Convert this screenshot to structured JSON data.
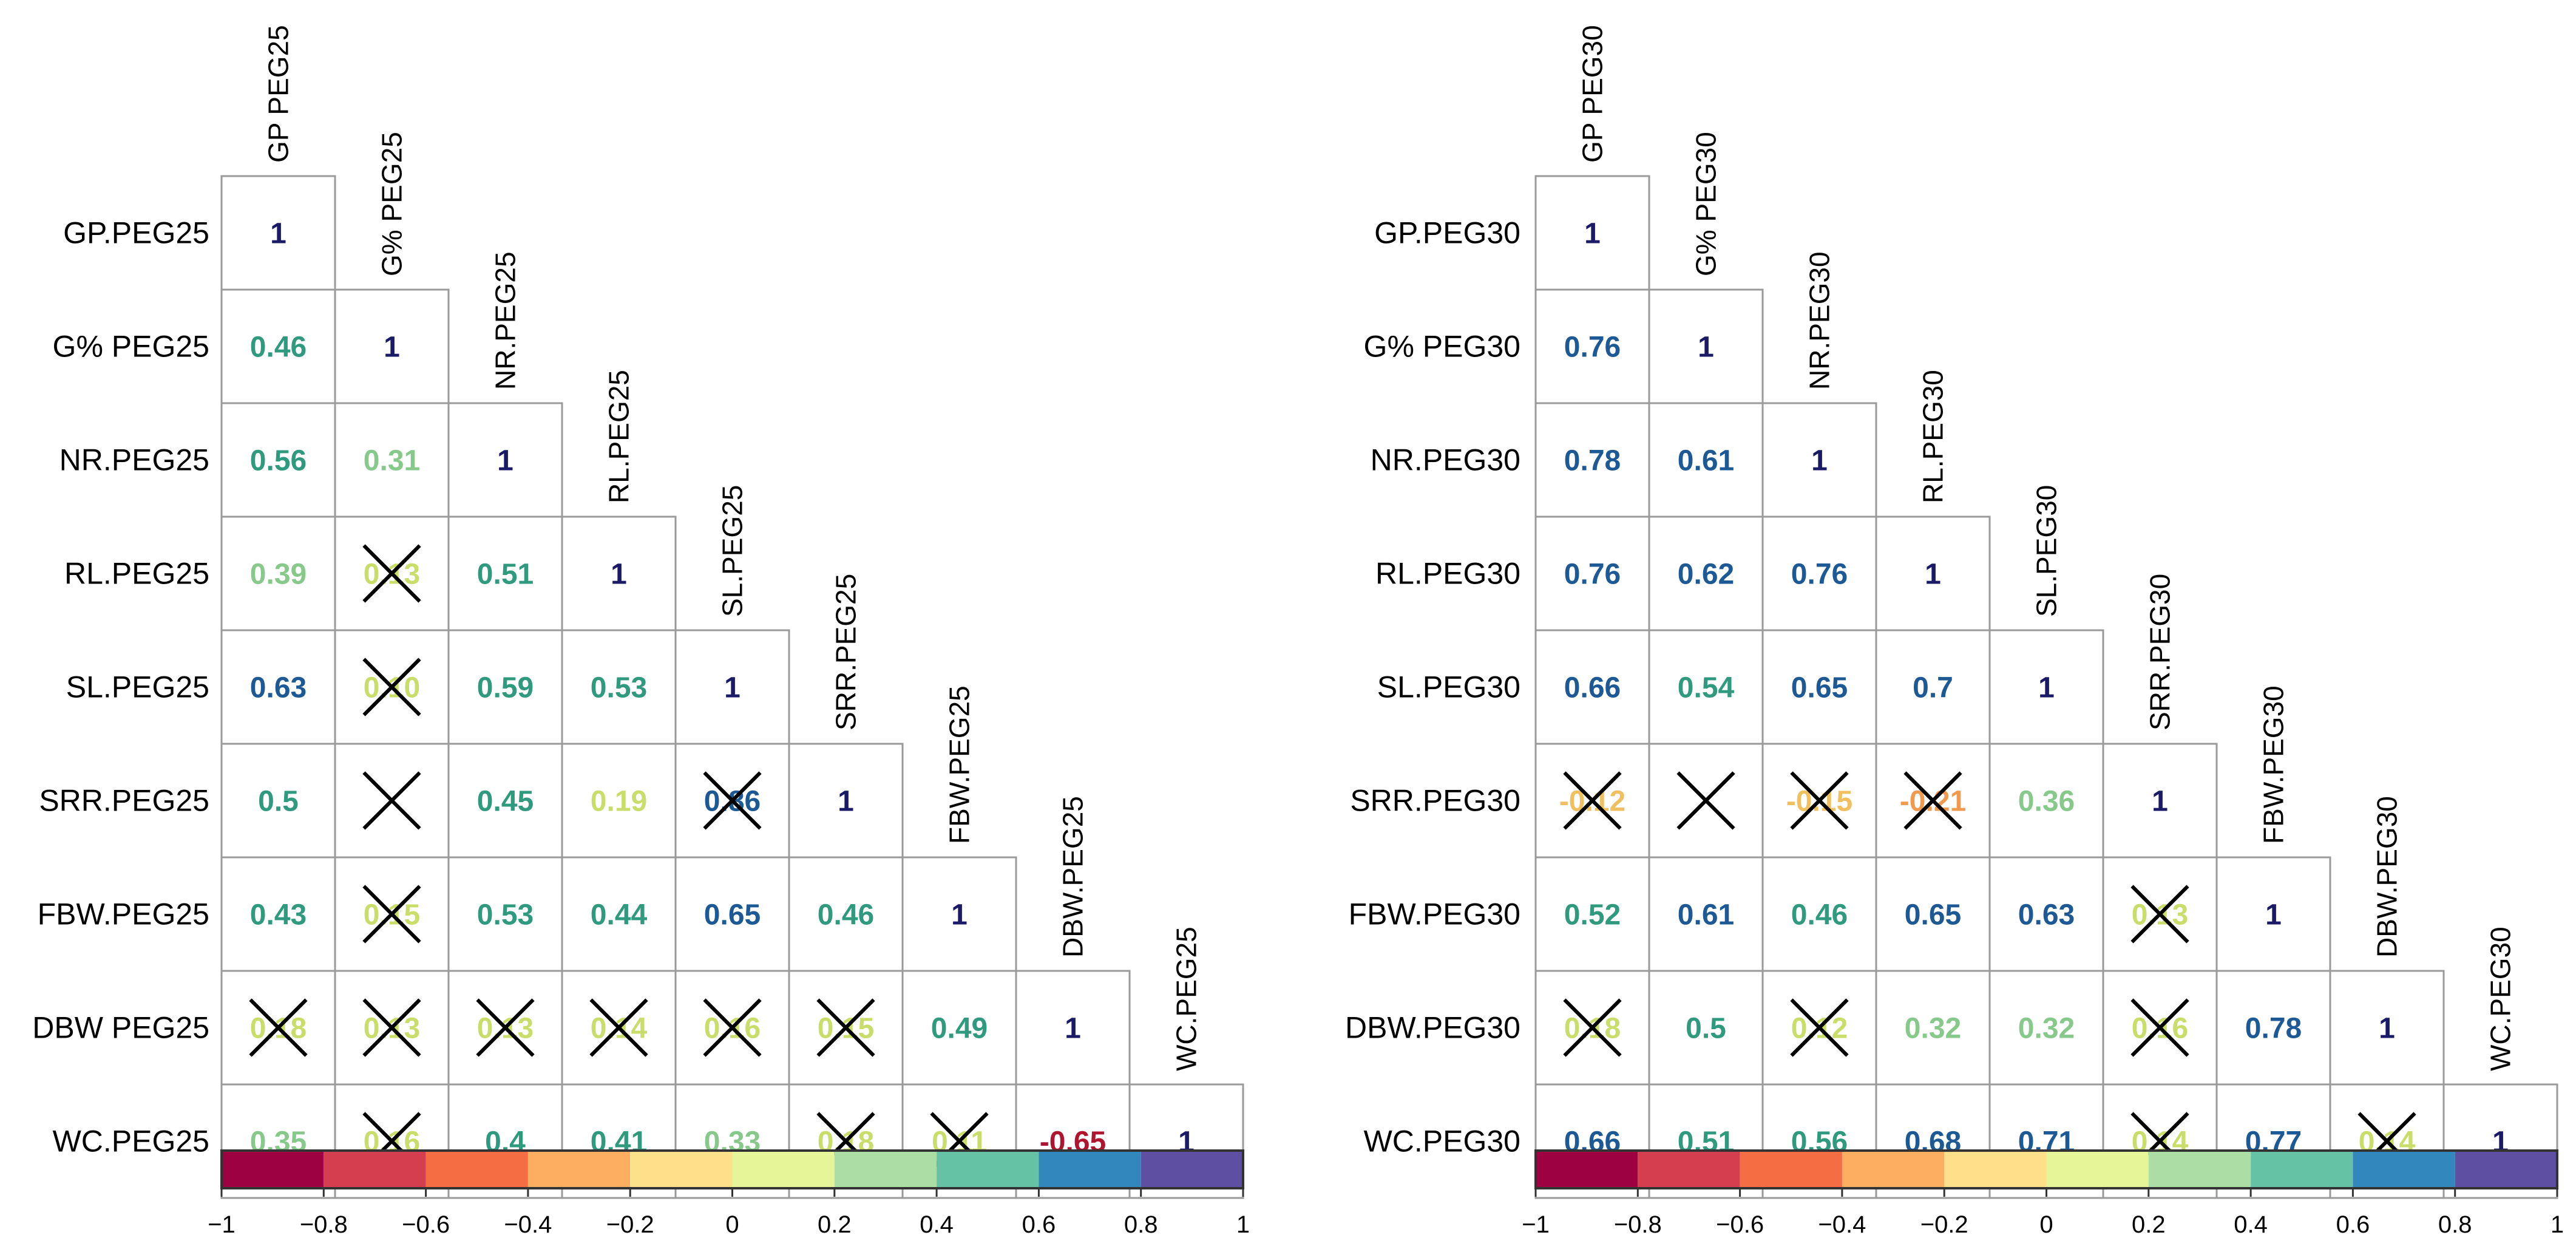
{
  "chart_data": [
    {
      "type": "heatmap",
      "title": "",
      "variables_top": [
        "GP PEG25",
        "G% PEG25",
        "NR.PEG25",
        "RL.PEG25",
        "SL.PEG25",
        "SRR.PEG25",
        "FBW.PEG25",
        "DBW.PEG25",
        "WC.PEG25"
      ],
      "variables_left": [
        "GP.PEG25",
        "G% PEG25",
        "NR.PEG25",
        "RL.PEG25",
        "SL.PEG25",
        "SRR.PEG25",
        "FBW.PEG25",
        "DBW PEG25",
        "WC.PEG25"
      ],
      "matrix": [
        [
          "1"
        ],
        [
          "0.46",
          "1"
        ],
        [
          "0.56",
          "0.31",
          "1"
        ],
        [
          "0.39",
          "0.13",
          "0.51",
          "1"
        ],
        [
          "0.63",
          "0.10",
          "0.59",
          "0.53",
          "1"
        ],
        [
          "0.5",
          "",
          "0.45",
          "0.19",
          "0.86",
          "1"
        ],
        [
          "0.43",
          "0.15",
          "0.53",
          "0.44",
          "0.65",
          "0.46",
          "1"
        ],
        [
          "0.18",
          "0.13",
          "0.13",
          "0.14",
          "0.16",
          "0.15",
          "0.49",
          "1"
        ],
        [
          "0.35",
          "0.16",
          "0.4",
          "0.41",
          "0.33",
          "0.18",
          "0.11",
          "-0.65",
          "1"
        ]
      ],
      "not_significant": [
        [
          3,
          1
        ],
        [
          4,
          1
        ],
        [
          5,
          1
        ],
        [
          5,
          4
        ],
        [
          6,
          1
        ],
        [
          7,
          0
        ],
        [
          7,
          1
        ],
        [
          7,
          2
        ],
        [
          7,
          3
        ],
        [
          7,
          4
        ],
        [
          7,
          5
        ],
        [
          8,
          1
        ],
        [
          8,
          5
        ],
        [
          8,
          6
        ]
      ],
      "colorbar": {
        "ticks": [
          "-1",
          "-0.8",
          "-0.6",
          "-0.4",
          "-0.2",
          "0",
          "0.2",
          "0.4",
          "0.6",
          "0.8",
          "1"
        ],
        "range": [
          -1,
          1
        ]
      }
    },
    {
      "type": "heatmap",
      "title": "",
      "variables_top": [
        "GP PEG30",
        "G% PEG30",
        "NR.PEG30",
        "RL.PEG30",
        "SL.PEG30",
        "SRR.PEG30",
        "FBW.PEG30",
        "DBW.PEG30",
        "WC.PEG30"
      ],
      "variables_left": [
        "GP.PEG30",
        "G% PEG30",
        "NR.PEG30",
        "RL.PEG30",
        "SL.PEG30",
        "SRR.PEG30",
        "FBW.PEG30",
        "DBW.PEG30",
        "WC.PEG30"
      ],
      "matrix": [
        [
          "1"
        ],
        [
          "0.76",
          "1"
        ],
        [
          "0.78",
          "0.61",
          "1"
        ],
        [
          "0.76",
          "0.62",
          "0.76",
          "1"
        ],
        [
          "0.66",
          "0.54",
          "0.65",
          "0.7",
          "1"
        ],
        [
          "-0.12",
          "",
          "-0.15",
          "-0.21",
          "0.36",
          "1"
        ],
        [
          "0.52",
          "0.61",
          "0.46",
          "0.65",
          "0.63",
          "0.13",
          "1"
        ],
        [
          "0.18",
          "0.5",
          "0.12",
          "0.32",
          "0.32",
          "0.16",
          "0.78",
          "1"
        ],
        [
          "0.66",
          "0.51",
          "0.56",
          "0.68",
          "0.71",
          "0.14",
          "0.77",
          "0.14",
          "1"
        ]
      ],
      "not_significant": [
        [
          5,
          0
        ],
        [
          5,
          1
        ],
        [
          5,
          2
        ],
        [
          5,
          3
        ],
        [
          6,
          5
        ],
        [
          7,
          0
        ],
        [
          7,
          2
        ],
        [
          7,
          5
        ],
        [
          8,
          5
        ],
        [
          8,
          7
        ]
      ],
      "colorbar": {
        "ticks": [
          "-1",
          "-0.8",
          "-0.6",
          "-0.4",
          "-0.2",
          "0",
          "0.2",
          "0.4",
          "0.6",
          "0.8",
          "1"
        ],
        "range": [
          -1,
          1
        ]
      }
    }
  ],
  "colors": {
    "palette": [
      "#9E0142",
      "#D53E4F",
      "#F46D43",
      "#FDAE61",
      "#FEE08B",
      "#E6F598",
      "#ABDDA4",
      "#66C2A5",
      "#3288BD",
      "#5E4FA2"
    ],
    "grid": "#9a9a9a",
    "text": "#000000"
  }
}
